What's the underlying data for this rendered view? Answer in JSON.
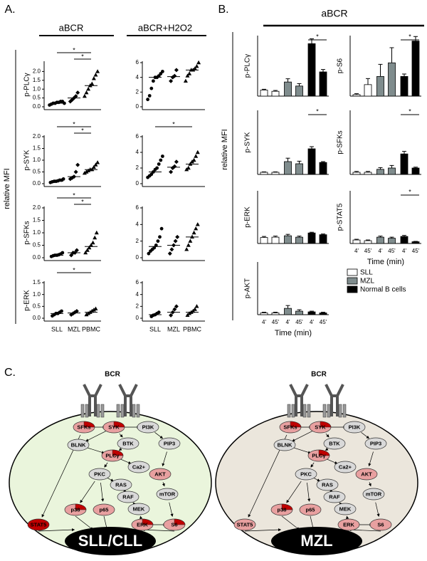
{
  "panel_a": {
    "label": "A.",
    "group_titles": [
      "aBCR",
      "aBCR+H2O2"
    ],
    "y_title": "relative MFI",
    "categories": [
      "SLL",
      "MZL",
      "PBMC"
    ],
    "rows": [
      {
        "name": "p-PLCγ",
        "left": {
          "ylim": [
            0,
            2.5
          ],
          "yticks": [
            {
              "value": 0,
              "label": "0.0"
            },
            {
              "value": 0.5,
              "label": "0.5"
            },
            {
              "value": 1,
              "label": "1.0"
            },
            {
              "value": 1.5,
              "label": "1.5"
            },
            {
              "value": 2,
              "label": "2.0"
            }
          ],
          "points": [
            [
              0.1,
              0.15,
              0.2,
              0.2,
              0.25,
              0.25,
              0.3,
              0.3,
              0.2
            ],
            [
              0.3,
              0.4,
              0.5,
              0.6,
              0.8
            ],
            [
              0.6,
              0.8,
              1.0,
              1.2,
              1.3,
              1.6,
              1.8,
              2.0
            ]
          ],
          "medians": [
            0.2,
            0.5,
            1.2
          ],
          "sig": [
            {
              "from": 0,
              "to": 2,
              "label": "*"
            },
            {
              "from": 1,
              "to": 2,
              "label": "*"
            }
          ]
        },
        "right": {
          "ylim": [
            0,
            6
          ],
          "yticks": [
            0,
            2,
            4,
            6
          ],
          "points": [
            [
              1,
              1.5,
              2.5,
              3.5,
              4,
              4,
              4.2,
              4.5,
              4.8
            ],
            [
              3.5,
              4,
              4.2,
              5
            ],
            [
              3.5,
              4.2,
              4.5,
              5,
              5,
              5.2,
              5.5,
              6
            ]
          ],
          "medians": [
            4,
            4.1,
            5
          ],
          "sig": []
        }
      },
      {
        "name": "p-SYK",
        "left": {
          "ylim": [
            0,
            2
          ],
          "yticks": [
            {
              "value": 0,
              "label": "0.0"
            },
            {
              "value": 0.5,
              "label": "0.5"
            },
            {
              "value": 1,
              "label": "1.0"
            },
            {
              "value": 1.5,
              "label": "1.5"
            },
            {
              "value": 2,
              "label": "2.0"
            }
          ],
          "points": [
            [
              0.05,
              0.08,
              0.1,
              0.1,
              0.12,
              0.15,
              0.15,
              0.2
            ],
            [
              0.2,
              0.25,
              0.3,
              0.5,
              0.8
            ],
            [
              0.45,
              0.5,
              0.55,
              0.6,
              0.6,
              0.7,
              0.8,
              0.9
            ]
          ],
          "medians": [
            0.11,
            0.3,
            0.6
          ],
          "sig": [
            {
              "from": 0,
              "to": 2,
              "label": "*"
            },
            {
              "from": 1,
              "to": 2,
              "label": "*"
            }
          ]
        },
        "right": {
          "ylim": [
            0,
            6
          ],
          "yticks": [
            0,
            2,
            4,
            6
          ],
          "points": [
            [
              0.8,
              1,
              1.2,
              1.5,
              1.8,
              2,
              2.5,
              3,
              3.5
            ],
            [
              1.5,
              2,
              2.2,
              2.8
            ],
            [
              1.8,
              2,
              2.5,
              2.8,
              3,
              3.5,
              4
            ]
          ],
          "medians": [
            1.5,
            2.1,
            2.5
          ],
          "sig": [
            {
              "from": 0,
              "to": 2,
              "label": "*"
            }
          ]
        }
      },
      {
        "name": "p-SFKs",
        "left": {
          "ylim": [
            0,
            2
          ],
          "yticks": [
            {
              "value": 0,
              "label": "0.0"
            },
            {
              "value": 0.5,
              "label": "0.5"
            },
            {
              "value": 1,
              "label": "1.0"
            },
            {
              "value": 1.5,
              "label": "1.5"
            },
            {
              "value": 2,
              "label": "2.0"
            }
          ],
          "points": [
            [
              0.05,
              0.08,
              0.1,
              0.1,
              0.12,
              0.15,
              0.2
            ],
            [
              0.1,
              0.2,
              0.2,
              0.3
            ],
            [
              0.2,
              0.3,
              0.4,
              0.5,
              0.6,
              0.8,
              1.0
            ]
          ],
          "medians": [
            0.1,
            0.2,
            0.45
          ],
          "sig": [
            {
              "from": 0,
              "to": 2,
              "label": "*"
            },
            {
              "from": 1,
              "to": 2,
              "label": "*"
            }
          ]
        },
        "right": {
          "ylim": [
            0,
            6
          ],
          "yticks": [
            0,
            2,
            4,
            6
          ],
          "points": [
            [
              0.5,
              0.8,
              1,
              1.2,
              1.5,
              2,
              2.5,
              3.5
            ],
            [
              0.5,
              1,
              1.5,
              2,
              2.5
            ],
            [
              1,
              1.5,
              2,
              2.5,
              3,
              3.5,
              4
            ]
          ],
          "medians": [
            1.35,
            1.5,
            2.5
          ],
          "sig": []
        }
      },
      {
        "name": "p-ERK",
        "left": {
          "ylim": [
            0,
            1.5
          ],
          "yticks": [
            {
              "value": 0,
              "label": "0.0"
            },
            {
              "value": 0.5,
              "label": "0.5"
            },
            {
              "value": 1,
              "label": "1.0"
            },
            {
              "value": 1.5,
              "label": "1.5"
            }
          ],
          "points": [
            [
              0.1,
              0.15,
              0.2,
              0.2,
              0.25,
              0.3
            ],
            [
              0.15,
              0.2,
              0.25,
              0.3
            ],
            [
              0.15,
              0.2,
              0.25,
              0.3,
              0.35,
              0.4
            ]
          ],
          "medians": [
            0.2,
            0.22,
            0.25
          ],
          "sig": [
            {
              "from": 0,
              "to": 2,
              "label": "*"
            }
          ]
        },
        "right": {
          "ylim": [
            0,
            6
          ],
          "yticks": [
            0,
            2,
            4,
            6
          ],
          "points": [
            [
              0.3,
              0.5,
              0.6,
              0.8,
              1
            ],
            [
              0.5,
              1,
              1.5,
              2
            ],
            [
              0.5,
              0.8,
              1,
              1.2,
              1.5,
              2
            ]
          ],
          "medians": [
            0.6,
            1.0,
            1.0
          ],
          "sig": []
        }
      }
    ]
  },
  "panel_b": {
    "label": "B.",
    "title": "aBCR",
    "y_title": "relative MFI",
    "x_title": "Time (min)",
    "timepoints": [
      "4'",
      "45'"
    ],
    "groups": [
      {
        "name": "SLL",
        "color": "#ffffff"
      },
      {
        "name": "MZL",
        "color": "#7f8c8d"
      },
      {
        "name": "Normal B cells",
        "color": "#000000"
      }
    ],
    "left": [
      {
        "name": "p-PLCγ",
        "ylim": [
          0,
          1.5
        ],
        "values": [
          0.15,
          0.12,
          0.35,
          0.25,
          1.3,
          0.6
        ],
        "errors": [
          0.02,
          0.02,
          0.08,
          0.06,
          0.12,
          0.06
        ],
        "sig": [
          {
            "from": 4,
            "to": 5,
            "label": "*"
          }
        ]
      },
      {
        "name": "p-SYK",
        "ylim": [
          0,
          1.5
        ],
        "values": [
          0.05,
          0.05,
          0.3,
          0.25,
          0.6,
          0.28
        ],
        "errors": [
          0.01,
          0.01,
          0.08,
          0.06,
          0.05,
          0.02
        ],
        "sig": [
          {
            "from": 4,
            "to": 5,
            "label": "*"
          }
        ]
      },
      {
        "name": "p-ERK",
        "ylim": [
          0,
          1.5
        ],
        "values": [
          0.17,
          0.18,
          0.22,
          0.18,
          0.3,
          0.25
        ],
        "errors": [
          0.03,
          0.03,
          0.04,
          0.03,
          0.02,
          0.02
        ],
        "sig": []
      },
      {
        "name": "p-AKT",
        "ylim": [
          0,
          1.5
        ],
        "values": [
          0.05,
          0.05,
          0.18,
          0.1,
          0.08,
          0.05
        ],
        "errors": [
          0.02,
          0.02,
          0.08,
          0.04,
          0.02,
          0.02
        ],
        "sig": []
      }
    ],
    "right": [
      {
        "name": "p-S6",
        "ylim": [
          0,
          2
        ],
        "values": [
          0.05,
          0.38,
          0.65,
          1.1,
          0.65,
          1.82
        ],
        "errors": [
          0.03,
          0.2,
          0.4,
          0.5,
          0.08,
          0.15
        ],
        "sig": [
          {
            "from": 4,
            "to": 5,
            "label": "*"
          }
        ]
      },
      {
        "name": "p-SFKs",
        "ylim": [
          0,
          1.5
        ],
        "values": [
          0.05,
          0.05,
          0.12,
          0.15,
          0.48,
          0.15
        ],
        "errors": [
          0.02,
          0.02,
          0.04,
          0.06,
          0.06,
          0.02
        ],
        "sig": [
          {
            "from": 4,
            "to": 5,
            "label": "*"
          }
        ]
      },
      {
        "name": "p-STAT5",
        "ylim": [
          0,
          1.5
        ],
        "values": [
          0.1,
          0.08,
          0.18,
          0.15,
          0.2,
          0.05
        ],
        "errors": [
          0.02,
          0.02,
          0.03,
          0.03,
          0.03,
          0.01
        ],
        "sig": [
          {
            "from": 4,
            "to": 5,
            "label": "*"
          }
        ]
      }
    ]
  },
  "panel_c": {
    "label": "C.",
    "cells": [
      {
        "title": "SLL/CLL",
        "receptor": "BCR",
        "color": "#eaf5dc",
        "nodes": [
          {
            "label": "SFKs",
            "color": "#e8a0a0",
            "accent": "#c00000"
          },
          {
            "label": "SYK",
            "color": "#e8a0a0",
            "accent": "#c00000"
          },
          {
            "label": "PI3K",
            "color": "#d9d9d9"
          },
          {
            "label": "BLNK",
            "color": "#d9d9d9"
          },
          {
            "label": "BTK",
            "color": "#d9d9d9"
          },
          {
            "label": "PIP3",
            "color": "#d9d9d9"
          },
          {
            "label": "PLCγ",
            "color": "#e8a0a0",
            "accent": "#c00000"
          },
          {
            "label": "Ca2+",
            "color": "#d9d9d9"
          },
          {
            "label": "PKC",
            "color": "#d9d9d9"
          },
          {
            "label": "AKT",
            "color": "#e8a0a0"
          },
          {
            "label": "RAS",
            "color": "#d9d9d9"
          },
          {
            "label": "RAF",
            "color": "#d9d9d9"
          },
          {
            "label": "mTOR",
            "color": "#d9d9d9"
          },
          {
            "label": "MEK",
            "color": "#d9d9d9"
          },
          {
            "label": "p38",
            "color": "#e8a0a0",
            "accent": "#c00000"
          },
          {
            "label": "p65",
            "color": "#e8a0a0"
          },
          {
            "label": "ERK",
            "color": "#e8a0a0",
            "accent": "#c00000"
          },
          {
            "label": "S6",
            "color": "#e8a0a0",
            "accent": "#c00000"
          },
          {
            "label": "STAT5",
            "color": "#c00000"
          }
        ]
      },
      {
        "title": "MZL",
        "receptor": "BCR",
        "color": "#ebe6dc",
        "nodes": [
          {
            "label": "SFKs",
            "color": "#e8a0a0",
            "accent": "#c00000"
          },
          {
            "label": "SYK",
            "color": "#e8a0a0",
            "accent": "#c00000"
          },
          {
            "label": "PI3K",
            "color": "#d9d9d9"
          },
          {
            "label": "BLNK",
            "color": "#d9d9d9"
          },
          {
            "label": "BTK",
            "color": "#d9d9d9"
          },
          {
            "label": "PIP3",
            "color": "#d9d9d9"
          },
          {
            "label": "PLCγ",
            "color": "#e8a0a0",
            "accent": "#c00000"
          },
          {
            "label": "Ca2+",
            "color": "#d9d9d9"
          },
          {
            "label": "PKC",
            "color": "#d9d9d9"
          },
          {
            "label": "AKT",
            "color": "#e8a0a0"
          },
          {
            "label": "RAS",
            "color": "#d9d9d9"
          },
          {
            "label": "RAF",
            "color": "#d9d9d9"
          },
          {
            "label": "mTOR",
            "color": "#d9d9d9"
          },
          {
            "label": "MEK",
            "color": "#d9d9d9"
          },
          {
            "label": "p38",
            "color": "#e8a0a0",
            "accent": "#c00000"
          },
          {
            "label": "p65",
            "color": "#e8a0a0"
          },
          {
            "label": "ERK",
            "color": "#e8a0a0"
          },
          {
            "label": "S6",
            "color": "#e8a0a0"
          },
          {
            "label": "STAT5",
            "color": "#e8a0a0"
          }
        ]
      }
    ]
  }
}
